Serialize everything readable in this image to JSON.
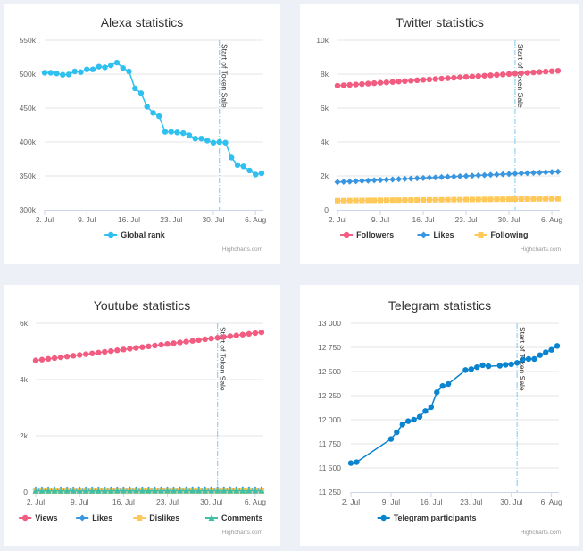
{
  "colors": {
    "alexa": "#2fc0ef",
    "views": "#f15c80",
    "likes": "#3b96e0",
    "dislikes": "#ffc95a",
    "comments": "#3fbfa8",
    "telegram": "#0b84cf",
    "plotline": "#7cc8f0"
  },
  "plotline_date": "2018-07-31",
  "credit": "Highcharts.com",
  "chart_data": [
    {
      "id": "alexa",
      "type": "line",
      "title": "Alexa statistics",
      "xlabel": "",
      "ylabel": "",
      "x_ticks": [
        "2. Jul",
        "9. Jul",
        "16. Jul",
        "23. Jul",
        "30. Jul",
        "6. Aug"
      ],
      "y_ticks": [
        "300k",
        "350k",
        "400k",
        "450k",
        "500k",
        "550k"
      ],
      "ylim": [
        300000,
        550000
      ],
      "x_range_days": [
        0,
        36.3
      ],
      "x_start": "2. Jul",
      "plotline_label": "Start of Token Sale",
      "plotline_day": 29,
      "grid": true,
      "legend_position": "bottom-center",
      "series": [
        {
          "name": "Global rank",
          "color_key": "alexa",
          "marker": "circle",
          "days": [
            0,
            1,
            2,
            3,
            4,
            5,
            6,
            7,
            8,
            9,
            10,
            11,
            12,
            13,
            14,
            15,
            16,
            17,
            18,
            19,
            20,
            21,
            22,
            23,
            24,
            25,
            26,
            27,
            28,
            29,
            30,
            31,
            32,
            33,
            34,
            35,
            36
          ],
          "values": [
            502000,
            502000,
            501000,
            499000,
            499500,
            504000,
            503000,
            507000,
            507000,
            511000,
            510000,
            513000,
            517000,
            509000,
            504000,
            479000,
            472000,
            452000,
            443000,
            438000,
            415000,
            415000,
            414000,
            413000,
            410000,
            405000,
            405000,
            402000,
            399000,
            400000,
            399000,
            377000,
            366000,
            364000,
            358000,
            352000,
            354000
          ]
        }
      ]
    },
    {
      "id": "twitter",
      "type": "line",
      "title": "Twitter statistics",
      "xlabel": "",
      "ylabel": "",
      "x_ticks": [
        "2. Jul",
        "9. Jul",
        "16. Jul",
        "23. Jul",
        "30. Jul",
        "6. Aug"
      ],
      "y_ticks": [
        "0",
        "2k",
        "4k",
        "6k",
        "8k",
        "10k"
      ],
      "ylim": [
        0,
        10000
      ],
      "x_range_days": [
        0,
        36.3
      ],
      "x_start": "2. Jul",
      "plotline_label": "Start of Token Sale",
      "plotline_day": 29,
      "grid": true,
      "legend_position": "bottom-center",
      "series": [
        {
          "name": "Followers",
          "color_key": "views",
          "marker": "circle",
          "start": 7320,
          "end": 8200,
          "count": 37
        },
        {
          "name": "Likes",
          "color_key": "likes",
          "marker": "diamond",
          "start": 1640,
          "end": 2250,
          "count": 37
        },
        {
          "name": "Following",
          "color_key": "dislikes",
          "marker": "square",
          "start": 540,
          "end": 650,
          "count": 37
        }
      ]
    },
    {
      "id": "youtube",
      "type": "line",
      "title": "Youtube statistics",
      "xlabel": "",
      "ylabel": "",
      "x_ticks": [
        "2. Jul",
        "9. Jul",
        "16. Jul",
        "23. Jul",
        "30. Jul",
        "6. Aug"
      ],
      "y_ticks": [
        "0",
        "2k",
        "4k",
        "6k"
      ],
      "ylim": [
        0,
        6000
      ],
      "x_range_days": [
        0,
        36.3
      ],
      "x_start": "2. Jul",
      "plotline_label": "Start of Token Sale",
      "plotline_day": 29,
      "grid": true,
      "legend_position": "bottom-center",
      "series": [
        {
          "name": "Views",
          "color_key": "views",
          "marker": "circle",
          "start": 4680,
          "end": 5680,
          "count": 37
        },
        {
          "name": "Likes",
          "color_key": "likes",
          "marker": "diamond",
          "start": 90,
          "end": 95,
          "count": 37
        },
        {
          "name": "Dislikes",
          "color_key": "dislikes",
          "marker": "square",
          "start": 30,
          "end": 32,
          "count": 37
        },
        {
          "name": "Comments",
          "color_key": "comments",
          "marker": "triangle",
          "start": 40,
          "end": 45,
          "count": 37
        }
      ]
    },
    {
      "id": "telegram",
      "type": "line",
      "title": "Telegram statistics",
      "xlabel": "",
      "ylabel": "",
      "x_ticks": [
        "2. Jul",
        "9. Jul",
        "16. Jul",
        "23. Jul",
        "30. Jul",
        "6. Aug"
      ],
      "y_ticks": [
        "11 250",
        "11 500",
        "11 750",
        "12 000",
        "12 250",
        "12 500",
        "12 750",
        "13 000"
      ],
      "ylim": [
        11250,
        13000
      ],
      "x_range_days": [
        0,
        36.3
      ],
      "x_start": "2. Jul",
      "plotline_label": "Start of Token Sale",
      "plotline_day": 29,
      "grid": true,
      "legend_position": "bottom-center",
      "series": [
        {
          "name": "Telegram participants",
          "color_key": "telegram",
          "marker": "circle",
          "days": [
            0,
            1,
            7,
            8,
            9,
            10,
            11,
            12,
            13,
            14,
            15,
            16,
            17,
            20,
            21,
            22,
            23,
            24,
            26,
            27,
            28,
            29,
            30,
            31,
            32,
            33,
            34,
            35,
            36
          ],
          "values": [
            11550,
            11560,
            11800,
            11870,
            11950,
            11985,
            12000,
            12030,
            12090,
            12130,
            12285,
            12350,
            12370,
            12515,
            12525,
            12545,
            12565,
            12555,
            12560,
            12570,
            12575,
            12590,
            12625,
            12630,
            12630,
            12670,
            12700,
            12725,
            12765
          ]
        }
      ]
    }
  ]
}
